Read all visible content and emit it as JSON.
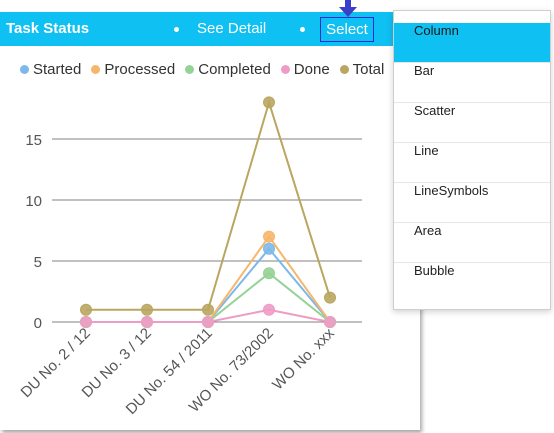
{
  "header": {
    "title": "Task Status",
    "see_detail_label": "See Detail",
    "select_label": "Select",
    "background": "#0fc0f2"
  },
  "menu": {
    "items": [
      "Column",
      "Bar",
      "Scatter",
      "Line",
      "LineSymbols",
      "Area",
      "Bubble"
    ],
    "selected": "Column",
    "selected_color": "#0fc0f2"
  },
  "chart_data": {
    "type": "line",
    "categories": [
      "DU No. 2 / 12",
      "DU No. 3 / 12",
      "DU No. 54 / 2011",
      "WO No. 73/2002",
      "WO No. xxx"
    ],
    "series": [
      {
        "name": "Started",
        "color": "#7cb9ea",
        "values": [
          0,
          0,
          0,
          6,
          0
        ]
      },
      {
        "name": "Processed",
        "color": "#f6b66b",
        "values": [
          0,
          0,
          0,
          7,
          0
        ]
      },
      {
        "name": "Completed",
        "color": "#95d295",
        "values": [
          0,
          0,
          0,
          4,
          0
        ]
      },
      {
        "name": "Done",
        "color": "#ee9cc6",
        "values": [
          0,
          0,
          0,
          1,
          0
        ]
      },
      {
        "name": "Total",
        "color": "#b9a660",
        "values": [
          1,
          1,
          1,
          18,
          2
        ]
      }
    ],
    "yticks": [
      0,
      5,
      10,
      15
    ],
    "ylim": [
      0,
      18.5
    ],
    "grid": true,
    "legend_position": "top"
  }
}
